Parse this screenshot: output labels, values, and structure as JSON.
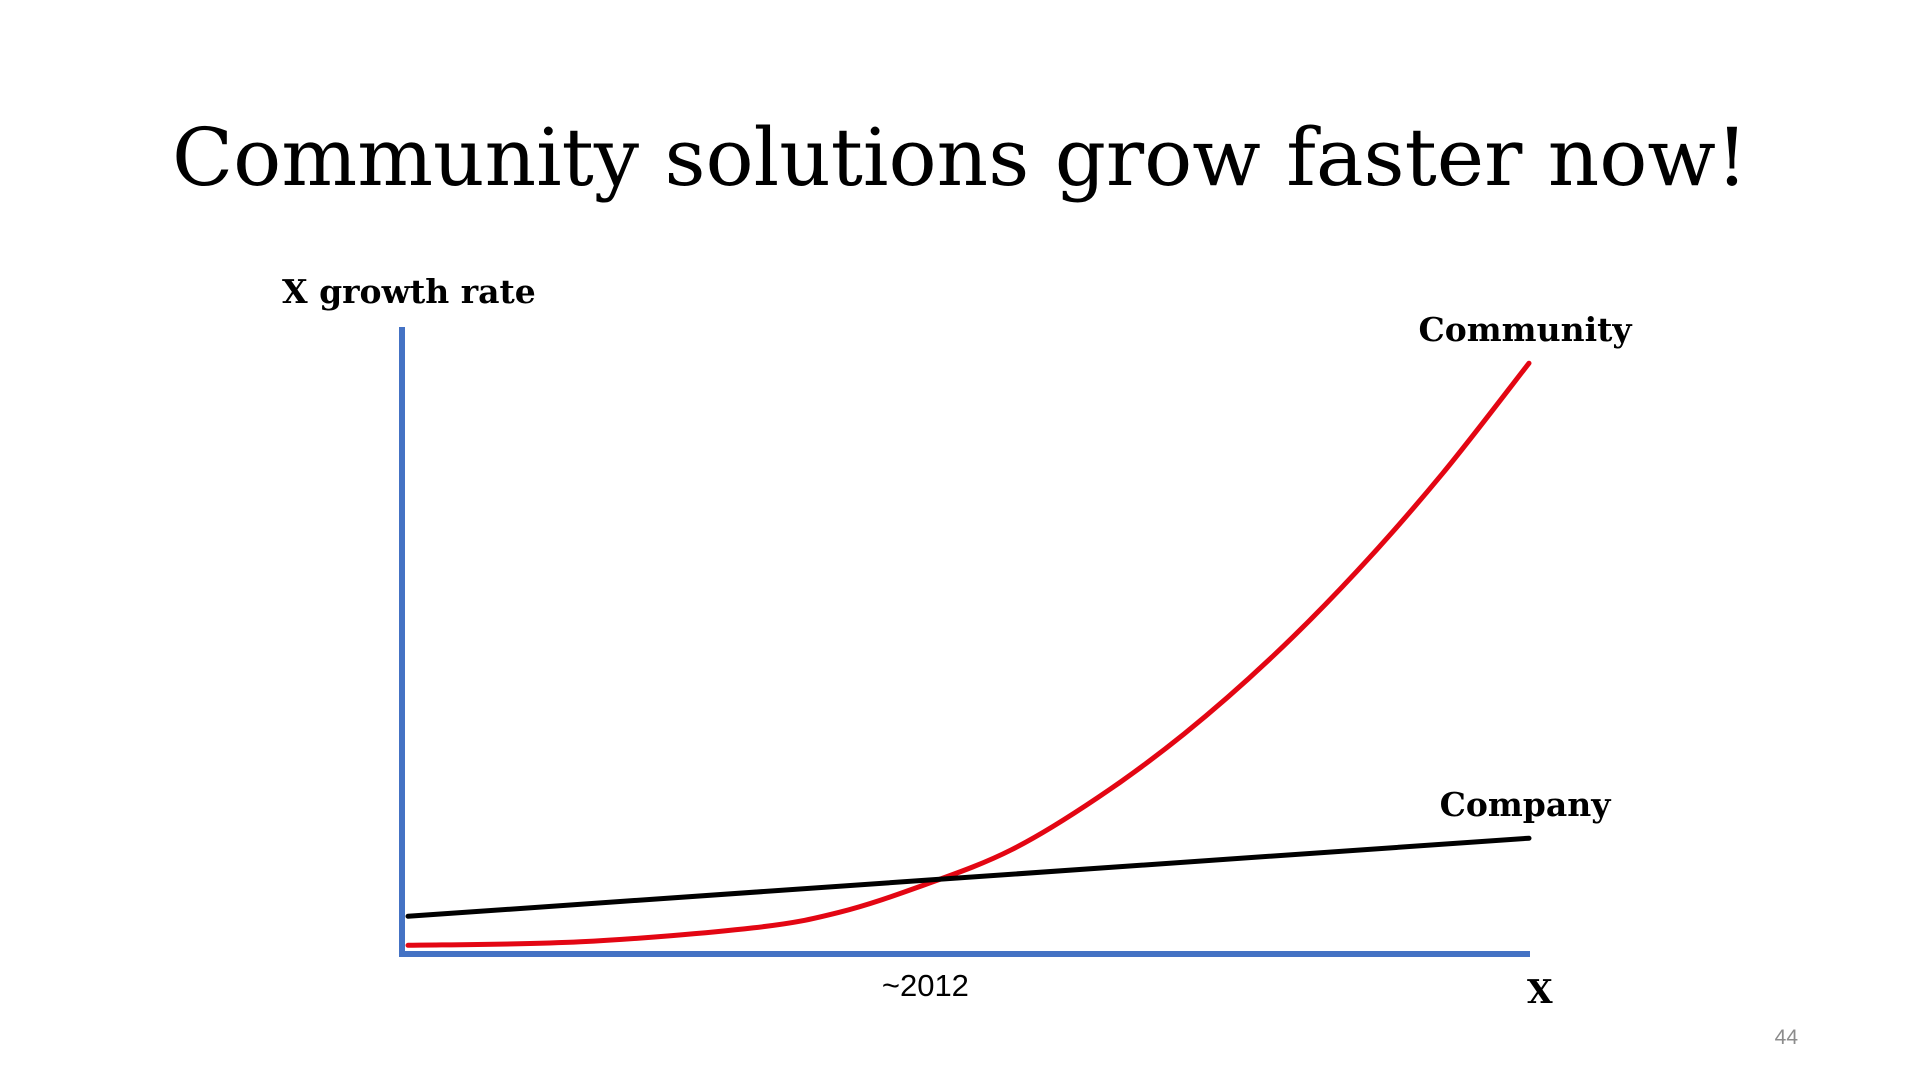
{
  "slide": {
    "title": "Community solutions grow faster now!",
    "number": "44"
  },
  "chart_data": {
    "type": "line",
    "title": "Community solutions grow faster now!",
    "ylabel": "X growth rate",
    "xlabel": "X",
    "x_ticks": [
      "~2012"
    ],
    "x_tick_values": [
      2012
    ],
    "grid": false,
    "legend": "none",
    "axis_color": "#4472c4",
    "series": [
      {
        "name": "Community",
        "color": "#e30613",
        "x": [
          2000,
          2004,
          2008,
          2010,
          2012,
          2014,
          2016,
          2018,
          2020,
          2022,
          2024,
          2026
        ],
        "y": [
          1.5,
          2.1,
          4.5,
          7.2,
          12,
          18,
          27,
          38,
          51,
          66,
          83,
          102
        ]
      },
      {
        "name": "Company",
        "color": "#000000",
        "x": [
          2000,
          2026
        ],
        "y": [
          6.5,
          20
        ]
      }
    ]
  }
}
